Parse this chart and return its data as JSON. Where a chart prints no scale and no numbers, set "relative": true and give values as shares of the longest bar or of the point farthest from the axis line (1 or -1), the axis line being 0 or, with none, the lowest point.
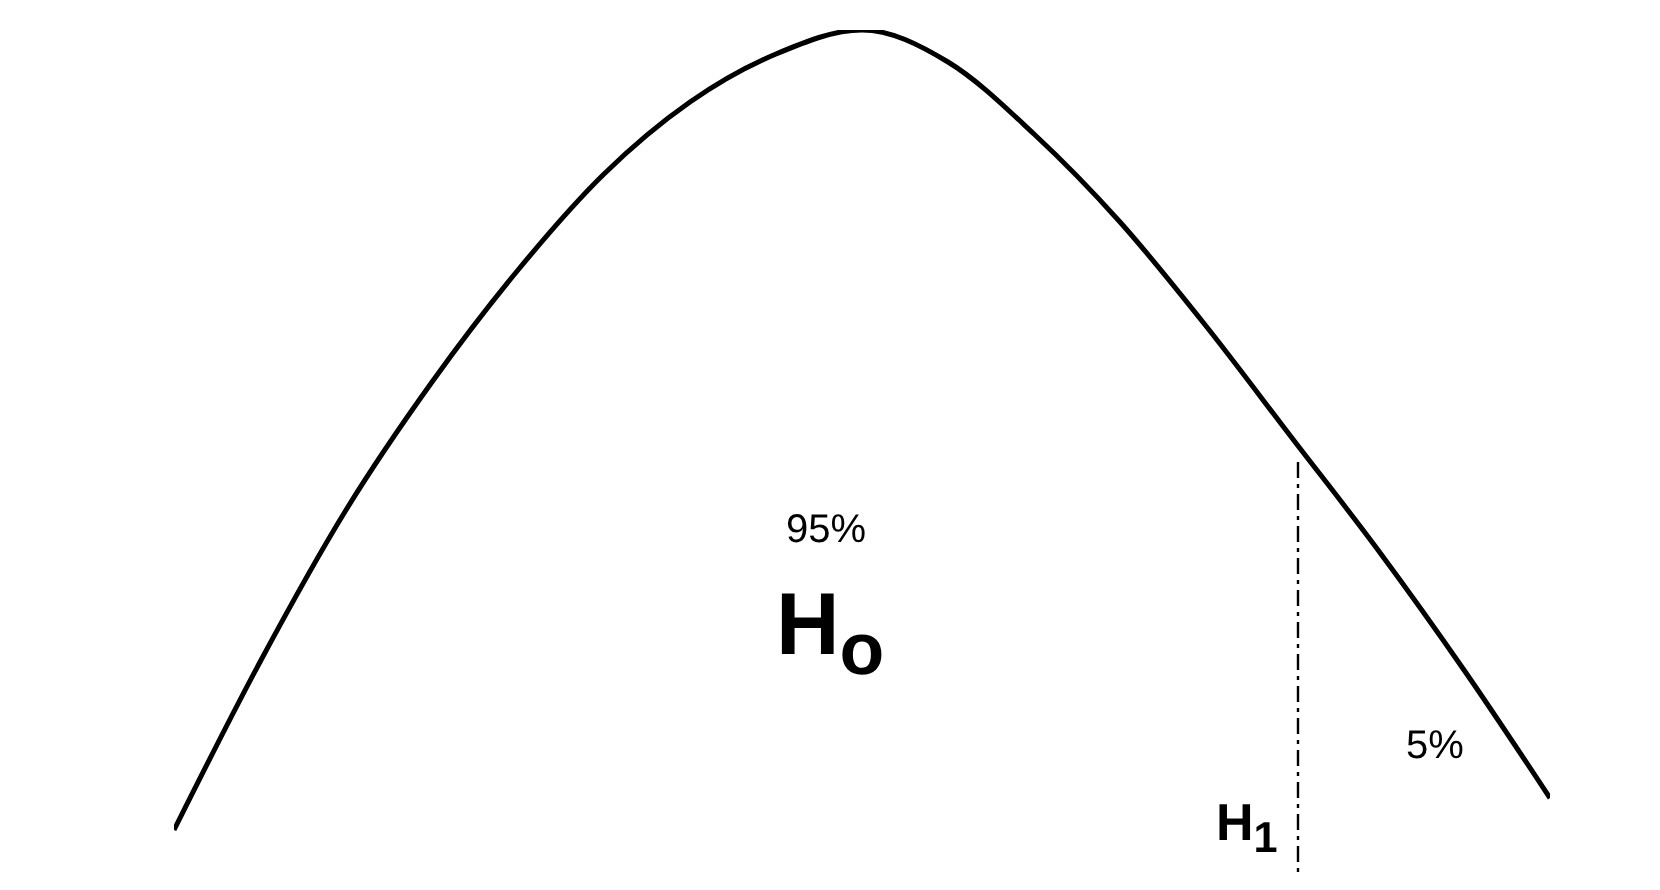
{
  "chart_data": {
    "type": "line",
    "relative": true,
    "categories": [
      null,
      null,
      null,
      null,
      null,
      null,
      null,
      null,
      null,
      null,
      null,
      null,
      null,
      null,
      null,
      null,
      null
    ],
    "series": [
      {
        "color": "#000000",
        "values": [
          0,
          0.21,
          0.4,
          0.56,
          0.7,
          0.82,
          0.91,
          0.97,
          1,
          0.96,
          0.87,
          0.76,
          0.63,
          0.49,
          0.35,
          0.2,
          0.04
        ]
      }
    ],
    "annotations": [
      "95%",
      "H$_{o}$",
      "5%",
      "H$_{1}$"
    ]
  }
}
